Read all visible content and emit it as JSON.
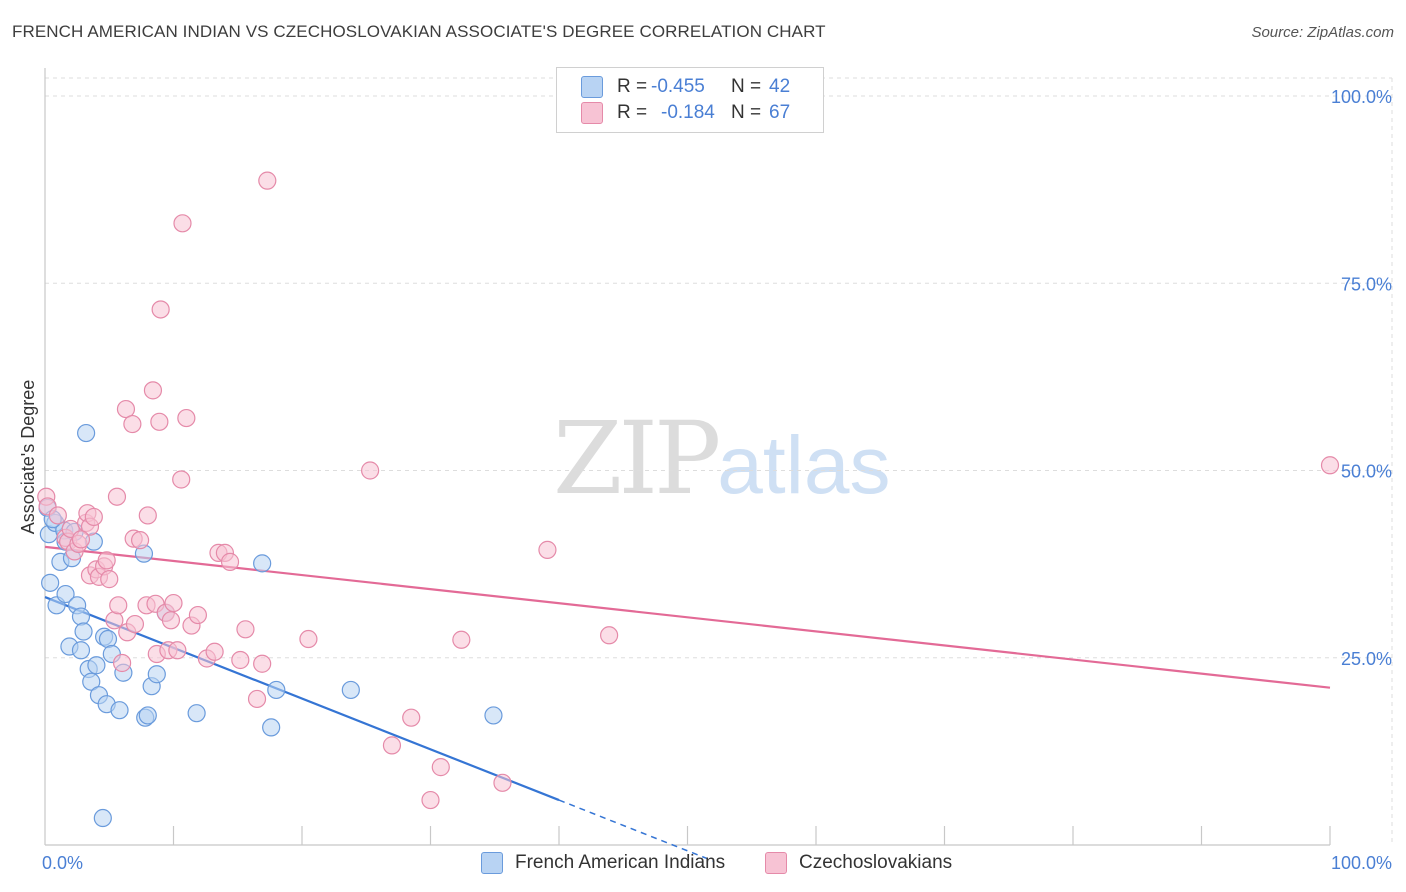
{
  "title": "FRENCH AMERICAN INDIAN VS CZECHOSLOVAKIAN ASSOCIATE'S DEGREE CORRELATION CHART",
  "source": "Source: ZipAtlas.com",
  "watermark": {
    "zip": "ZIP",
    "atlas": "atlas"
  },
  "legend": {
    "r_label": "R =",
    "n_label": "N =",
    "series1": {
      "r": "-0.455",
      "n": "42"
    },
    "series2": {
      "r": "-0.184",
      "n": "67"
    }
  },
  "colors": {
    "blue_fill": "#b8d3f3",
    "blue_stroke": "#6a9bdc",
    "blue_line": "#3575d4",
    "pink_fill": "#f7c3d4",
    "pink_stroke": "#e58aa9",
    "pink_line": "#e36a96",
    "grid": "#dddddd",
    "axis_label": "#4a7fd4"
  },
  "chart_data": {
    "type": "scatter",
    "title": "FRENCH AMERICAN INDIAN VS CZECHOSLOVAKIAN ASSOCIATE'S DEGREE CORRELATION CHART",
    "xlabel": "",
    "ylabel": "Associate's Degree",
    "xlim": [
      0,
      100
    ],
    "ylim": [
      0,
      100
    ],
    "x_tick_labels": [
      "0.0%",
      "100.0%"
    ],
    "y_tick_labels": [
      "100.0%",
      "75.0%",
      "50.0%",
      "25.0%"
    ],
    "y_ticks": [
      100,
      75,
      50,
      25
    ],
    "series": [
      {
        "name": "French American Indians",
        "r": -0.455,
        "n": 42,
        "trend": {
          "x0": 0,
          "y0": 33.1,
          "x1": 40,
          "y1": 6.0,
          "dash_to_x": 52
        },
        "points": [
          [
            0.2,
            45.0
          ],
          [
            0.3,
            41.5
          ],
          [
            0.4,
            35.0
          ],
          [
            0.8,
            43.0
          ],
          [
            0.9,
            32.0
          ],
          [
            1.2,
            37.8
          ],
          [
            1.5,
            42.0
          ],
          [
            1.6,
            40.5
          ],
          [
            1.6,
            33.5
          ],
          [
            1.9,
            26.5
          ],
          [
            2.1,
            38.3
          ],
          [
            2.5,
            32.0
          ],
          [
            2.8,
            26.0
          ],
          [
            2.8,
            30.5
          ],
          [
            3.0,
            28.5
          ],
          [
            3.2,
            55.0
          ],
          [
            3.4,
            23.5
          ],
          [
            3.6,
            21.8
          ],
          [
            3.8,
            40.5
          ],
          [
            4.0,
            24.0
          ],
          [
            4.2,
            20.0
          ],
          [
            4.5,
            3.6
          ],
          [
            4.6,
            27.8
          ],
          [
            4.8,
            18.8
          ],
          [
            4.9,
            27.5
          ],
          [
            5.2,
            25.5
          ],
          [
            5.8,
            18.0
          ],
          [
            6.1,
            23.0
          ],
          [
            7.7,
            38.9
          ],
          [
            7.8,
            17.0
          ],
          [
            8.0,
            17.3
          ],
          [
            8.3,
            21.2
          ],
          [
            8.7,
            22.8
          ],
          [
            9.4,
            31.0
          ],
          [
            11.8,
            17.6
          ],
          [
            16.9,
            37.6
          ],
          [
            17.6,
            15.7
          ],
          [
            18.0,
            20.7
          ],
          [
            23.8,
            20.7
          ],
          [
            34.9,
            17.3
          ],
          [
            0.6,
            43.5
          ],
          [
            2.3,
            41.8
          ]
        ]
      },
      {
        "name": "Czechoslovakians",
        "r": -0.184,
        "n": 67,
        "trend": {
          "x0": 0,
          "y0": 39.8,
          "x1": 100,
          "y1": 21.0
        },
        "points": [
          [
            0.1,
            46.5
          ],
          [
            0.2,
            45.2
          ],
          [
            1.0,
            44.0
          ],
          [
            1.6,
            41.0
          ],
          [
            1.8,
            40.5
          ],
          [
            2.0,
            42.2
          ],
          [
            2.3,
            39.2
          ],
          [
            2.6,
            40.2
          ],
          [
            3.2,
            43.0
          ],
          [
            3.3,
            44.3
          ],
          [
            3.5,
            42.5
          ],
          [
            3.8,
            43.8
          ],
          [
            3.5,
            36.0
          ],
          [
            4.0,
            36.8
          ],
          [
            4.2,
            35.8
          ],
          [
            4.6,
            37.2
          ],
          [
            4.8,
            38.0
          ],
          [
            5.0,
            35.5
          ],
          [
            5.4,
            30.0
          ],
          [
            5.6,
            46.5
          ],
          [
            5.7,
            32.0
          ],
          [
            6.0,
            24.3
          ],
          [
            6.3,
            58.2
          ],
          [
            6.4,
            28.4
          ],
          [
            6.8,
            56.2
          ],
          [
            6.9,
            40.9
          ],
          [
            7.0,
            29.5
          ],
          [
            7.4,
            40.7
          ],
          [
            7.9,
            32.0
          ],
          [
            8.0,
            44.0
          ],
          [
            8.4,
            60.7
          ],
          [
            8.6,
            32.2
          ],
          [
            8.7,
            25.5
          ],
          [
            8.9,
            56.5
          ],
          [
            9.0,
            71.5
          ],
          [
            9.4,
            31.0
          ],
          [
            9.6,
            26.0
          ],
          [
            9.8,
            30.0
          ],
          [
            10.0,
            32.3
          ],
          [
            10.3,
            26.0
          ],
          [
            10.6,
            48.8
          ],
          [
            10.7,
            83.0
          ],
          [
            11.0,
            57.0
          ],
          [
            11.4,
            29.3
          ],
          [
            11.9,
            30.7
          ],
          [
            12.6,
            24.9
          ],
          [
            13.2,
            25.8
          ],
          [
            13.5,
            39.0
          ],
          [
            14.0,
            39.0
          ],
          [
            14.4,
            37.8
          ],
          [
            15.2,
            24.7
          ],
          [
            15.6,
            28.8
          ],
          [
            16.5,
            19.5
          ],
          [
            16.9,
            24.2
          ],
          [
            17.3,
            88.7
          ],
          [
            20.5,
            27.5
          ],
          [
            25.3,
            50.0
          ],
          [
            27.0,
            13.3
          ],
          [
            28.5,
            17.0
          ],
          [
            30.0,
            6.0
          ],
          [
            30.8,
            10.4
          ],
          [
            32.4,
            27.4
          ],
          [
            35.6,
            8.3
          ],
          [
            39.1,
            39.4
          ],
          [
            43.9,
            28.0
          ],
          [
            100.0,
            50.7
          ],
          [
            2.8,
            40.8
          ]
        ]
      }
    ]
  }
}
